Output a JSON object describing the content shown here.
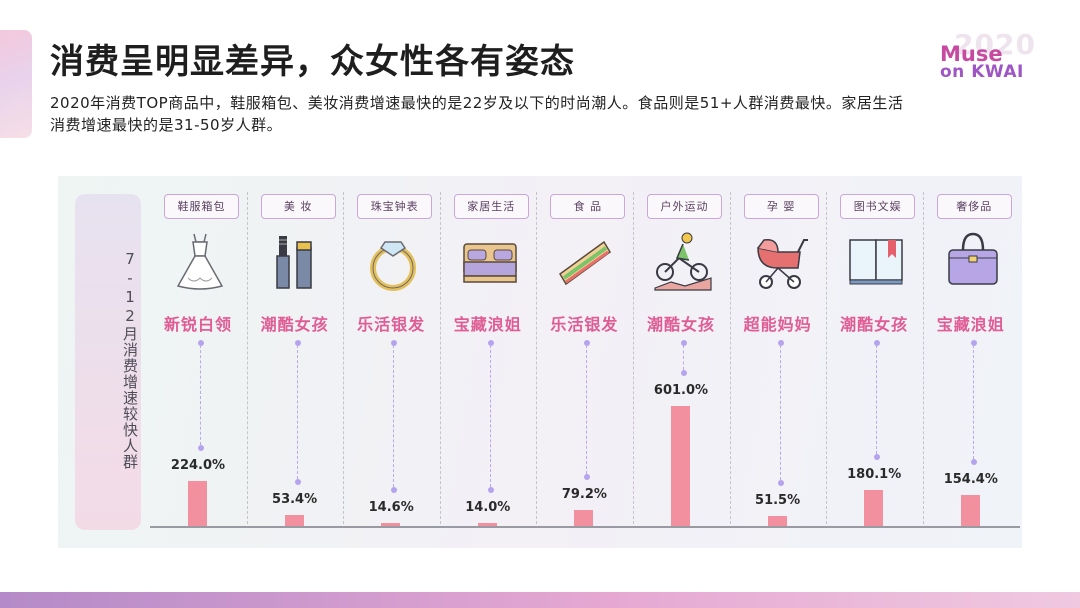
{
  "page": {
    "title": "消费呈明显差异，众女性各有姿态",
    "subtitle": "2020年消费TOP商品中，鞋服箱包、美妆消费增速最快的是22岁及以下的时尚潮人。食品则是51+人群消费最快。家居生活消费增速最快的是31-50岁人群。"
  },
  "logo": {
    "year": "2020",
    "line1": "Muse",
    "line2": "on KWAI"
  },
  "side_label": "7-12月消费增速较快人群",
  "chart_data": {
    "type": "bar",
    "categories": [
      "鞋服箱包",
      "美 妆",
      "珠宝钟表",
      "家居生活",
      "食 品",
      "户外运动",
      "孕 婴",
      "图书文娱",
      "奢侈品"
    ],
    "groups": [
      "新锐白领",
      "潮酷女孩",
      "乐活银发",
      "宝藏浪姐",
      "乐活银发",
      "潮酷女孩",
      "超能妈妈",
      "潮酷女孩",
      "宝藏浪姐"
    ],
    "icons": [
      "wedding-dress-icon",
      "cosmetics-icon",
      "ring-icon",
      "bed-icon",
      "sandwich-icon",
      "cyclist-icon",
      "stroller-icon",
      "book-icon",
      "handbag-icon"
    ],
    "values": [
      224.0,
      53.4,
      14.6,
      14.0,
      79.2,
      601.0,
      51.5,
      180.1,
      154.4
    ],
    "value_labels": [
      "224.0%",
      "53.4%",
      "14.6%",
      "14.0%",
      "79.2%",
      "601.0%",
      "51.5%",
      "180.1%",
      "154.4%"
    ],
    "bar_color": "#f2909f",
    "group_color": "#e05c95",
    "ylim": [
      0,
      601.0
    ]
  }
}
